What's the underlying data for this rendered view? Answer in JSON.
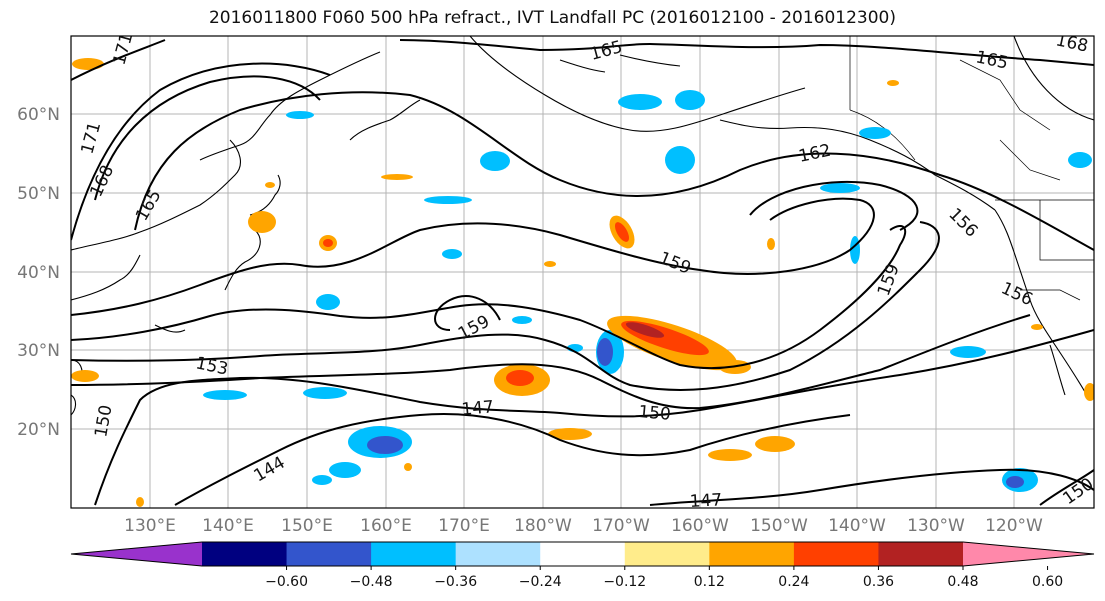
{
  "title": "2016011800 F060 500 hPa refract., IVT Landfall PC (2016012100 - 2016012300)",
  "lat_labels": [
    "60°N",
    "50°N",
    "40°N",
    "30°N",
    "20°N"
  ],
  "lon_labels": [
    "130°E",
    "140°E",
    "150°E",
    "160°E",
    "170°E",
    "180°W",
    "170°W",
    "160°W",
    "150°W",
    "140°W",
    "130°W",
    "120°W"
  ],
  "contour_labels": [
    "171",
    "171",
    "168",
    "165",
    "165",
    "165",
    "168",
    "162",
    "156",
    "156",
    "159",
    "159",
    "159",
    "153",
    "150",
    "147",
    "150",
    "144",
    "147",
    "150"
  ],
  "colorbar": {
    "ticks": [
      "−0.60",
      "−0.48",
      "−0.36",
      "−0.24",
      "−0.12",
      "0.12",
      "0.24",
      "0.36",
      "0.48",
      "0.60"
    ],
    "colors": [
      "#9932CC",
      "#000080",
      "#3355CC",
      "#00BFFF",
      "#ADE1FF",
      "#FFFFFF",
      "#FFEC8B",
      "#FFA500",
      "#FF4000",
      "#B22222",
      "#FF88AA"
    ]
  },
  "legend_colors": {
    "neg_dark": "#3355CC",
    "neg_mid": "#00BFFF",
    "neg_light": "#ADE1FF",
    "pos_light": "#FFEC8B",
    "pos_mid": "#FFA500",
    "pos_strong": "#FF4000",
    "pos_dark": "#B22222"
  }
}
